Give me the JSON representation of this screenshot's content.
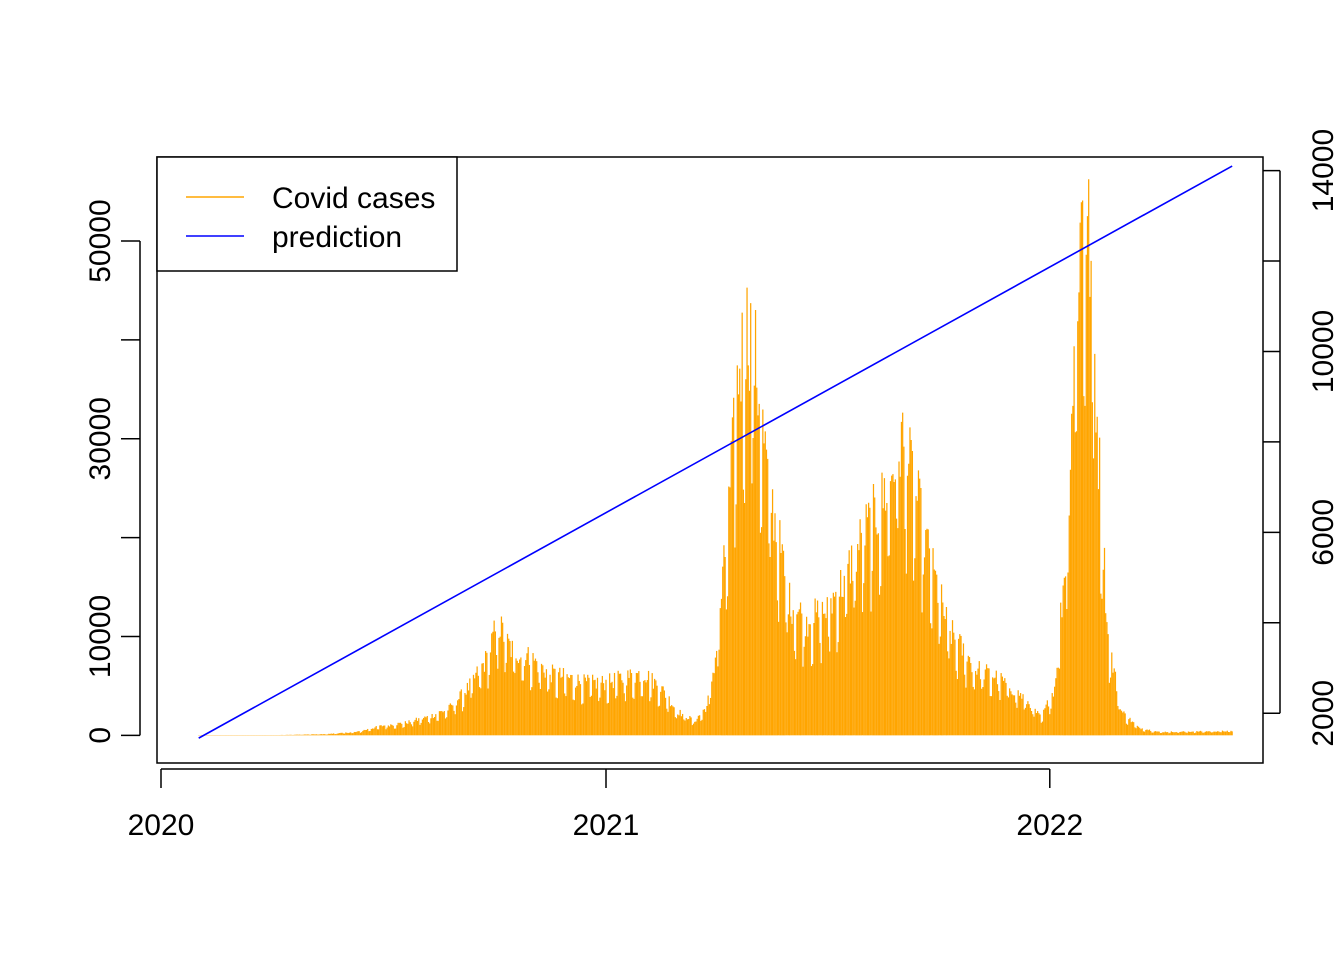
{
  "chart_data": {
    "type": "line",
    "title": "",
    "xlabel": "",
    "ylabel": "",
    "x_ticks": [
      {
        "date": "2020-01-01",
        "label": "2020"
      },
      {
        "date": "2021-01-01",
        "label": "2021"
      },
      {
        "date": "2022-01-01",
        "label": "2022"
      }
    ],
    "y_left": {
      "range": [
        -2800,
        58500
      ],
      "ticks": [
        0,
        10000,
        20000,
        30000,
        40000,
        50000
      ],
      "labels": [
        "0",
        "10000",
        "30000",
        "50000"
      ]
    },
    "y_right": {
      "range": [
        900,
        14300
      ],
      "ticks": [
        2000,
        4000,
        6000,
        8000,
        10000,
        12000,
        14000
      ],
      "labels": [
        "2000",
        "6000",
        "10000",
        "14000"
      ]
    },
    "grid": false,
    "legend": {
      "placement": "top-left",
      "entries": [
        {
          "label": "Covid cases",
          "color": "#FFA500"
        },
        {
          "label": "prediction",
          "color": "#0000FF"
        }
      ]
    },
    "series": [
      {
        "name": "Covid cases",
        "kind": "daily-bars",
        "axis": "left",
        "color": "#FFA500",
        "points": [
          [
            "2020-02-01",
            0
          ],
          [
            "2020-04-01",
            20
          ],
          [
            "2020-05-15",
            120
          ],
          [
            "2020-06-10",
            350
          ],
          [
            "2020-07-01",
            1000
          ],
          [
            "2020-07-20",
            1300
          ],
          [
            "2020-08-10",
            2000
          ],
          [
            "2020-08-25",
            2800
          ],
          [
            "2020-09-10",
            5000
          ],
          [
            "2020-09-25",
            8000
          ],
          [
            "2020-10-01",
            10500
          ],
          [
            "2020-10-05",
            11500
          ],
          [
            "2020-10-15",
            9000
          ],
          [
            "2020-11-01",
            8000
          ],
          [
            "2020-11-15",
            6500
          ],
          [
            "2020-12-01",
            6000
          ],
          [
            "2020-12-15",
            5500
          ],
          [
            "2021-01-01",
            5500
          ],
          [
            "2021-01-15",
            6000
          ],
          [
            "2021-02-01",
            6500
          ],
          [
            "2021-02-15",
            5000
          ],
          [
            "2021-03-01",
            2500
          ],
          [
            "2021-03-15",
            1500
          ],
          [
            "2021-03-25",
            3000
          ],
          [
            "2021-04-01",
            8000
          ],
          [
            "2021-04-10",
            20000
          ],
          [
            "2021-04-20",
            38000
          ],
          [
            "2021-04-28",
            43000
          ],
          [
            "2021-05-03",
            40000
          ],
          [
            "2021-05-15",
            26000
          ],
          [
            "2021-06-01",
            14000
          ],
          [
            "2021-06-15",
            12000
          ],
          [
            "2021-07-01",
            13000
          ],
          [
            "2021-07-15",
            16000
          ],
          [
            "2021-08-01",
            21000
          ],
          [
            "2021-08-15",
            24000
          ],
          [
            "2021-08-25",
            28000
          ],
          [
            "2021-09-01",
            31000
          ],
          [
            "2021-09-10",
            27000
          ],
          [
            "2021-09-25",
            18000
          ],
          [
            "2021-10-10",
            11000
          ],
          [
            "2021-11-01",
            7000
          ],
          [
            "2021-11-20",
            6000
          ],
          [
            "2021-12-10",
            4000
          ],
          [
            "2021-12-25",
            1800
          ],
          [
            "2022-01-05",
            5000
          ],
          [
            "2022-01-15",
            20000
          ],
          [
            "2022-01-22",
            44000
          ],
          [
            "2022-01-28",
            56000
          ],
          [
            "2022-02-03",
            51000
          ],
          [
            "2022-02-10",
            30000
          ],
          [
            "2022-02-18",
            10000
          ],
          [
            "2022-03-01",
            2500
          ],
          [
            "2022-03-15",
            800
          ],
          [
            "2022-04-01",
            350
          ],
          [
            "2022-05-01",
            400
          ],
          [
            "2022-05-31",
            450
          ]
        ]
      },
      {
        "name": "prediction",
        "kind": "line",
        "axis": "right",
        "color": "#0000FF",
        "points": [
          [
            "2020-02-01",
            1450
          ],
          [
            "2022-05-31",
            14100
          ]
        ]
      }
    ]
  }
}
